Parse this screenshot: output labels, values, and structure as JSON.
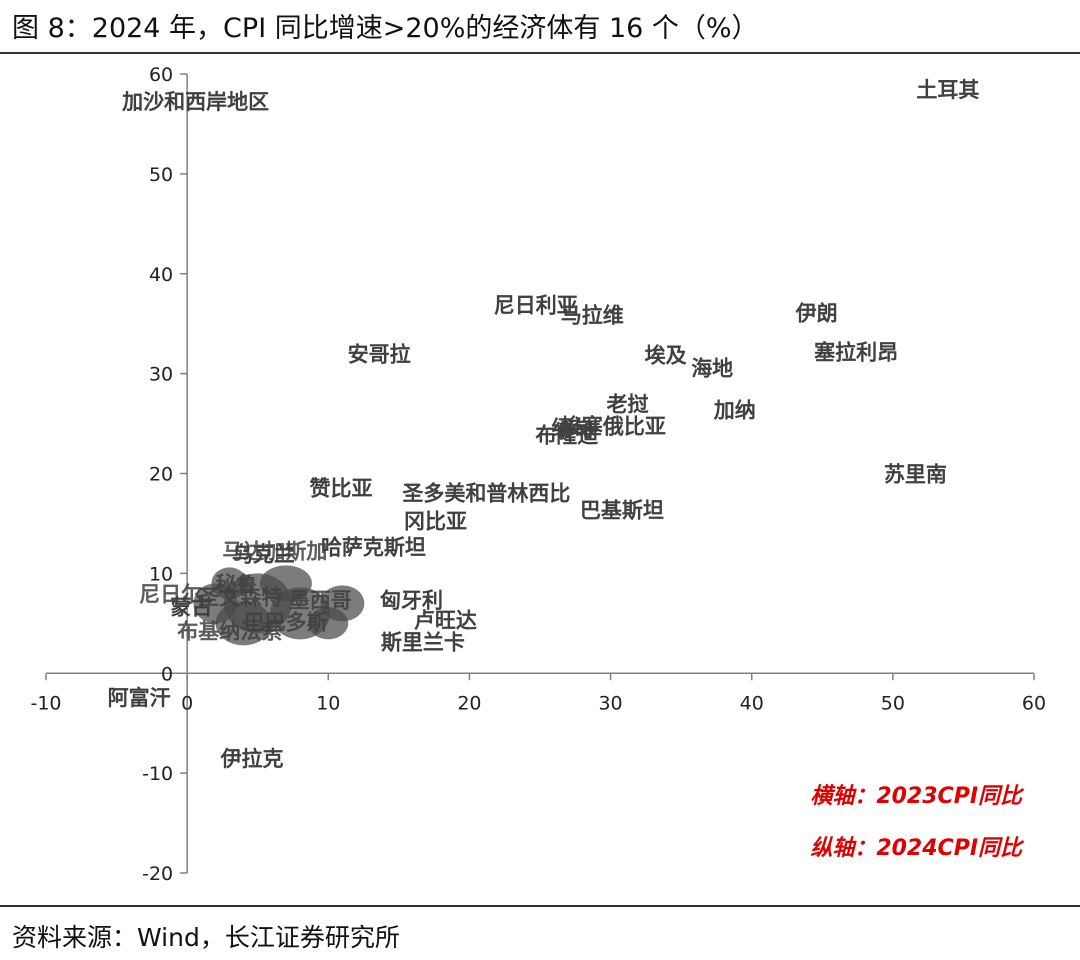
{
  "title": "图 8：2024 年，CPI 同比增速>20%的经济体有 16 个（%）",
  "source": "资料来源：Wind，长江证券研究所",
  "chart_data": {
    "type": "scatter",
    "xlim": [
      -10,
      60
    ],
    "ylim": [
      -20,
      60
    ],
    "x_ticks": [
      -10,
      0,
      10,
      20,
      30,
      40,
      50,
      60
    ],
    "y_ticks": [
      -20,
      -10,
      0,
      10,
      20,
      30,
      40,
      50,
      60
    ],
    "grid": false,
    "annotations": [
      "横轴：2023CPI同比",
      "纵轴：2024CPI同比"
    ],
    "points": [
      {
        "label": "土耳其",
        "x": 53.9,
        "y": 58.5
      },
      {
        "label": "加沙和西岸地区",
        "x": 0.6,
        "y": 57.3
      },
      {
        "label": "尼日利亚",
        "x": 24.7,
        "y": 36.9
      },
      {
        "label": "马拉维",
        "x": 28.7,
        "y": 35.9
      },
      {
        "label": "伊朗",
        "x": 44.6,
        "y": 36.1
      },
      {
        "label": "安哥拉",
        "x": 13.6,
        "y": 32.0
      },
      {
        "label": "埃及",
        "x": 33.9,
        "y": 31.9
      },
      {
        "label": "海地",
        "x": 37.2,
        "y": 30.6
      },
      {
        "label": "塞拉利昂",
        "x": 47.4,
        "y": 32.2
      },
      {
        "label": "老挝",
        "x": 31.2,
        "y": 27.0
      },
      {
        "label": "加纳",
        "x": 38.8,
        "y": 26.4
      },
      {
        "label": "埃塞俄比亚",
        "x": 30.2,
        "y": 24.8
      },
      {
        "label": "缅甸",
        "x": 27.3,
        "y": 24.6
      },
      {
        "label": "布隆迪",
        "x": 26.9,
        "y": 23.9
      },
      {
        "label": "苏里南",
        "x": 51.6,
        "y": 20.0
      },
      {
        "label": "赞比亚",
        "x": 10.9,
        "y": 18.6
      },
      {
        "label": "圣多美和普林西比",
        "x": 21.2,
        "y": 18.1
      },
      {
        "label": "巴基斯坦",
        "x": 30.8,
        "y": 16.4
      },
      {
        "label": "冈比亚",
        "x": 17.6,
        "y": 15.3
      },
      {
        "label": "乌克兰",
        "x": 5.4,
        "y": 12.0
      },
      {
        "label": "哈萨克斯坦",
        "x": 13.2,
        "y": 12.7
      },
      {
        "label": "蒙古",
        "x": 0.3,
        "y": 6.7
      },
      {
        "label": "匈牙利",
        "x": 15.9,
        "y": 7.4
      },
      {
        "label": "卢旺达",
        "x": 18.3,
        "y": 5.4
      },
      {
        "label": "斯里兰卡",
        "x": 16.7,
        "y": 3.2
      },
      {
        "label": "阿富汗",
        "x": -3.4,
        "y": -2.4
      },
      {
        "label": "伊拉克",
        "x": 4.6,
        "y": -8.5
      }
    ],
    "cluster_labels": [
      "尼日尔",
      "圣文森特",
      "布基纳法索",
      "马达加斯加",
      "巴巴多斯",
      "秘鲁",
      "墨西哥"
    ]
  }
}
